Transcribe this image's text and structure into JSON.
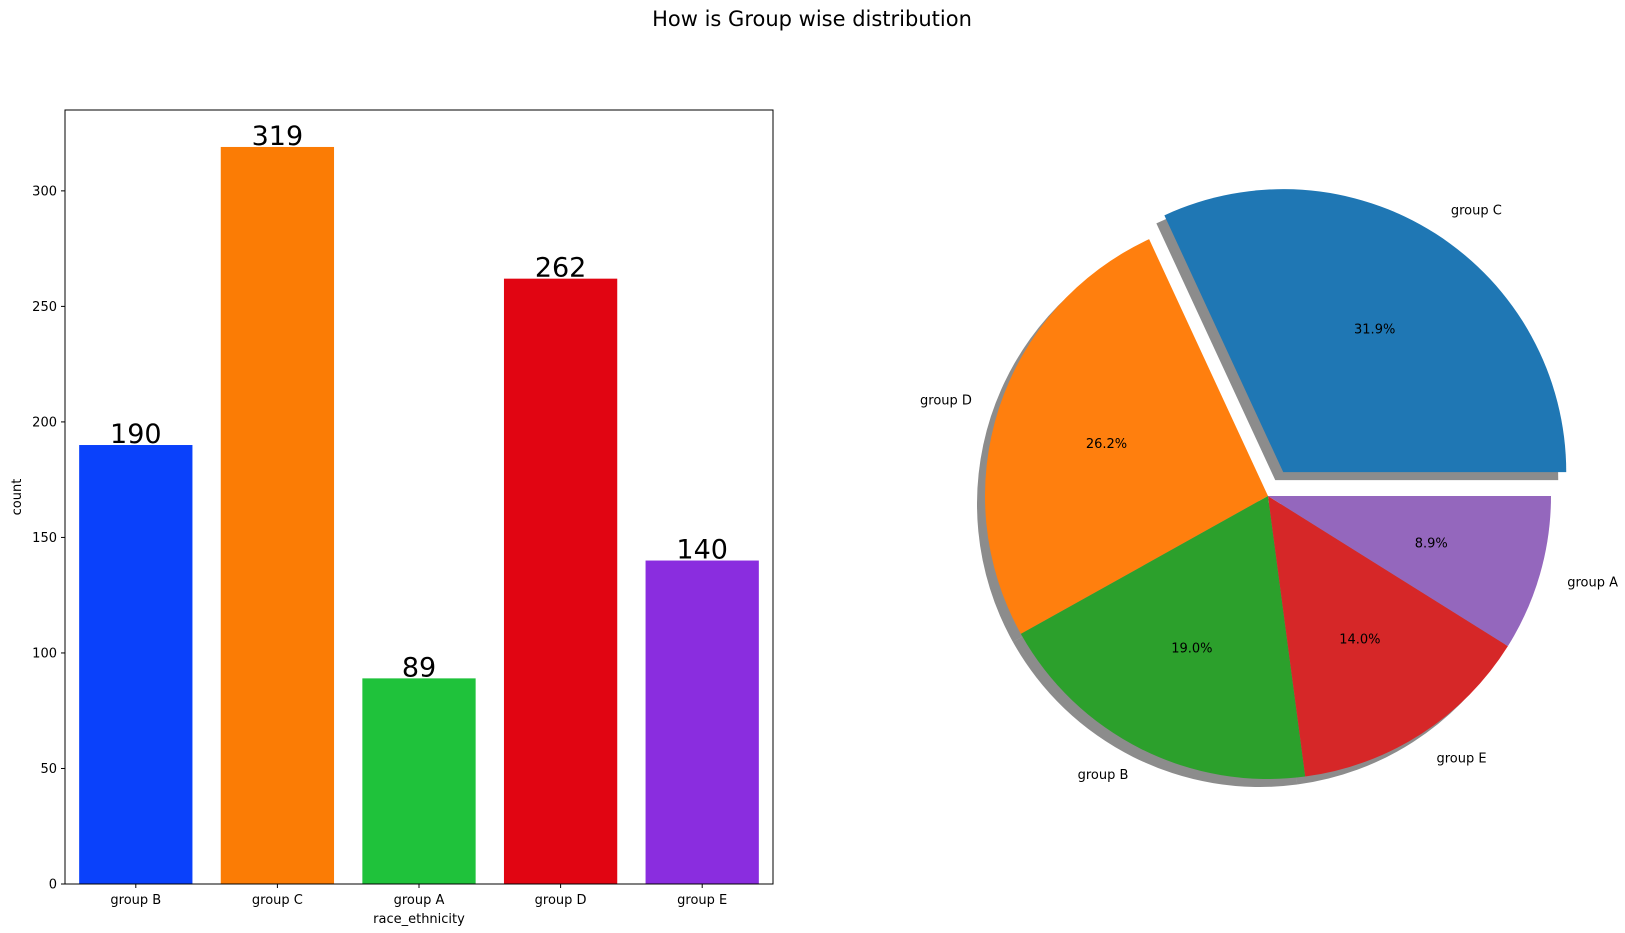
{
  "figure": {
    "suptitle": "How is Group wise distribution"
  },
  "chart_data": [
    {
      "type": "bar",
      "title": "",
      "xlabel": "race_ethnicity",
      "ylabel": "count",
      "categories": [
        "group B",
        "group C",
        "group A",
        "group D",
        "group E"
      ],
      "values": [
        190,
        319,
        89,
        262,
        140
      ],
      "data_labels": [
        "190",
        "319",
        "89",
        "262",
        "140"
      ],
      "colors": [
        "#0a41fb",
        "#fb7c05",
        "#1fc23b",
        "#e10512",
        "#8a2ddf"
      ],
      "ylim": [
        0,
        335
      ],
      "yticks": [
        0,
        50,
        100,
        150,
        200,
        250,
        300
      ],
      "ytick_labels": [
        "0",
        "50",
        "100",
        "150",
        "200",
        "250",
        "300"
      ],
      "grid": false,
      "legend": "none"
    },
    {
      "type": "pie",
      "title": "",
      "labels": [
        "group C",
        "group D",
        "group B",
        "group E",
        "group A"
      ],
      "values": [
        31.9,
        26.2,
        19.0,
        14.0,
        8.9
      ],
      "pct_labels": [
        "31.9%",
        "26.2%",
        "19.0%",
        "14.0%",
        "8.9%"
      ],
      "colors": [
        "#1f77b4",
        "#ff7f0e",
        "#2ca02c",
        "#d62728",
        "#9467bd"
      ],
      "explode": [
        0.1,
        0,
        0,
        0,
        0
      ],
      "shadow": true,
      "startangle": 0,
      "direction": "counterclockwise",
      "legend": "none"
    }
  ]
}
